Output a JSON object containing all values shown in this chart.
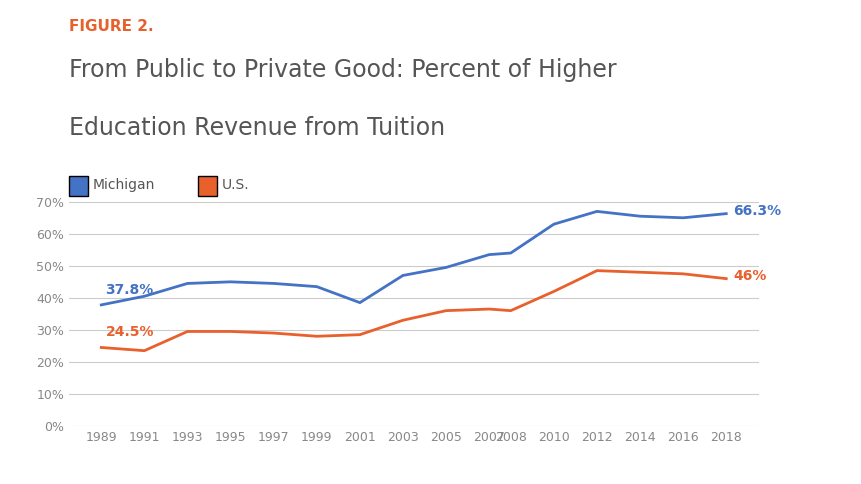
{
  "figure_label": "FIGURE 2.",
  "title_line1": "From Public to Private Good: Percent of Higher",
  "title_line2": "Education Revenue from Tuition",
  "michigan_label": "Michigan",
  "us_label": "U.S.",
  "michigan_color": "#4472C4",
  "us_color": "#E8602C",
  "figure_label_color": "#E8602C",
  "title_color": "#555555",
  "background_color": "#FFFFFF",
  "x_years": [
    1989,
    1991,
    1993,
    1995,
    1997,
    1999,
    2001,
    2003,
    2005,
    2007,
    2008,
    2010,
    2012,
    2014,
    2016,
    2018
  ],
  "michigan_values": [
    37.8,
    40.5,
    44.5,
    45.0,
    44.5,
    43.5,
    38.5,
    47.0,
    49.5,
    53.5,
    54.0,
    63.0,
    67.0,
    65.5,
    65.0,
    66.3
  ],
  "us_values": [
    24.5,
    23.5,
    29.5,
    29.5,
    29.0,
    28.0,
    28.5,
    33.0,
    36.0,
    36.5,
    36.0,
    42.0,
    48.5,
    48.0,
    47.5,
    46.0
  ],
  "michigan_start_label": "37.8%",
  "michigan_end_label": "66.3%",
  "us_start_label": "24.5%",
  "us_end_label": "46%",
  "ylim": [
    0,
    80
  ],
  "yticks": [
    0,
    10,
    20,
    30,
    40,
    50,
    60,
    70
  ],
  "ytick_labels": [
    "0%",
    "10%",
    "20%",
    "30%",
    "40%",
    "50%",
    "60%",
    "70%"
  ],
  "grid_color": "#CCCCCC",
  "line_width": 2.0,
  "annotation_fontsize": 10,
  "tick_fontsize": 9,
  "legend_fontsize": 10,
  "title_fontsize": 17,
  "figure_label_fontsize": 11
}
